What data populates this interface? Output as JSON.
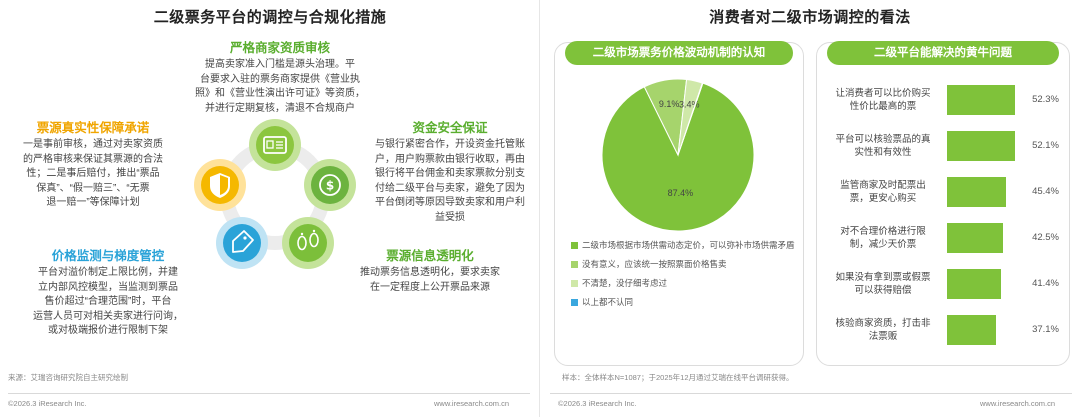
{
  "left": {
    "title": "二级票务平台的调控与合规化措施",
    "items": {
      "qualification": {
        "title": "严格商家资质审核",
        "lines": [
          "提高卖家准入门槛是源头治理。平",
          "台要求入驻的票务商家提供《营业执",
          "照》和《营业性演出许可证》等资质，",
          "并进行定期复核，清退不合规商户"
        ]
      },
      "authenticity": {
        "title": "票源真实性保障承诺",
        "lines": [
          "一是事前审核，通过对卖家资质",
          "的严格审核来保证其票源的合法",
          "性；二是事后赔付，推出“票品",
          "保真”、“假一赔三”、“无票",
          "退一赔一”等保障计划"
        ]
      },
      "funds": {
        "title": "资金安全保证",
        "lines": [
          "与银行紧密合作，开设资金托管账",
          "户，用户购票款由银行收取，再由",
          "银行将平台佣金和卖家票款分别支",
          "付给二级平台与卖家，避免了因为",
          "平台倒闭等原因导致卖家和用户利",
          "益受损"
        ]
      },
      "price": {
        "title": "价格监测与梯度管控",
        "lines": [
          "平台对溢价制定上限比例，并建",
          "立内部风控模型，当监测到票品",
          "售价超过“合理范围”时，平台",
          "运营人员可对相关卖家进行问询，",
          "或对极端报价进行限制下架"
        ]
      },
      "transparency": {
        "title": "票源信息透明化",
        "lines": [
          "推动票务信息透明化，要求卖家",
          "在一定程度上公开票品来源"
        ]
      }
    },
    "icons": [
      "document-icon",
      "dollar-coin-icon",
      "footprints-icon",
      "price-tag-icon",
      "shield-icon"
    ],
    "source": "来源：艾瑞咨询研究院自主研究绘制",
    "footer_left": "©2026.3 iResearch Inc.",
    "footer_right": "www.iresearch.com.cn"
  },
  "right": {
    "title": "消费者对二级市场调控的看法",
    "pie_card_title": "二级市场票务价格波动机制的认知",
    "bar_card_title": "二级平台能解决的黄牛问题",
    "source": "样本：全体样本N=1087；于2025年12月通过艾瑞在线平台调研获得。",
    "footer_left": "©2026.3 iResearch Inc.",
    "footer_right": "www.iresearch.com.cn",
    "colors": {
      "green": "#7fc23a",
      "light_green": "#a6d46c",
      "pale_green": "#cfe8a8",
      "blue": "#3aa7de"
    }
  },
  "chart_data": [
    {
      "type": "pie",
      "title": "二级市场票务价格波动机制的认知",
      "slices": [
        {
          "label": "二级市场根据市场供需动态定价，可以弥补市场供需矛盾",
          "value": 87.4,
          "value_label": "87.4%",
          "color": "#7fc23a"
        },
        {
          "label": "没有意义，应该统一按照票面价格售卖",
          "value": 9.1,
          "value_label": "9.1%",
          "color": "#a6d46c"
        },
        {
          "label": "不清楚，没仔细考虑过",
          "value": 3.4,
          "value_label": "3.4%",
          "color": "#cfe8a8"
        },
        {
          "label": "以上都不认同",
          "value": 0.1,
          "value_label": "",
          "color": "#3aa7de"
        }
      ]
    },
    {
      "type": "bar",
      "orientation": "horizontal",
      "title": "二级平台能解决的黄牛问题",
      "categories": [
        [
          "让消费者可以比价购买",
          "性价比最高的票"
        ],
        [
          "平台可以核验票品的真",
          "实性和有效性"
        ],
        [
          "监管商家及时配票出",
          "票，更安心购买"
        ],
        [
          "对不合理价格进行限",
          "制，减少天价票"
        ],
        [
          "如果没有拿到票或假票",
          "可以获得赔偿"
        ],
        [
          "核验商家资质，打击非",
          "法票贩"
        ]
      ],
      "values": [
        52.3,
        52.1,
        45.4,
        42.5,
        41.4,
        37.1
      ],
      "value_labels": [
        "52.3%",
        "52.1%",
        "45.4%",
        "42.5%",
        "41.4%",
        "37.1%"
      ],
      "color": "#7fc23a"
    }
  ]
}
